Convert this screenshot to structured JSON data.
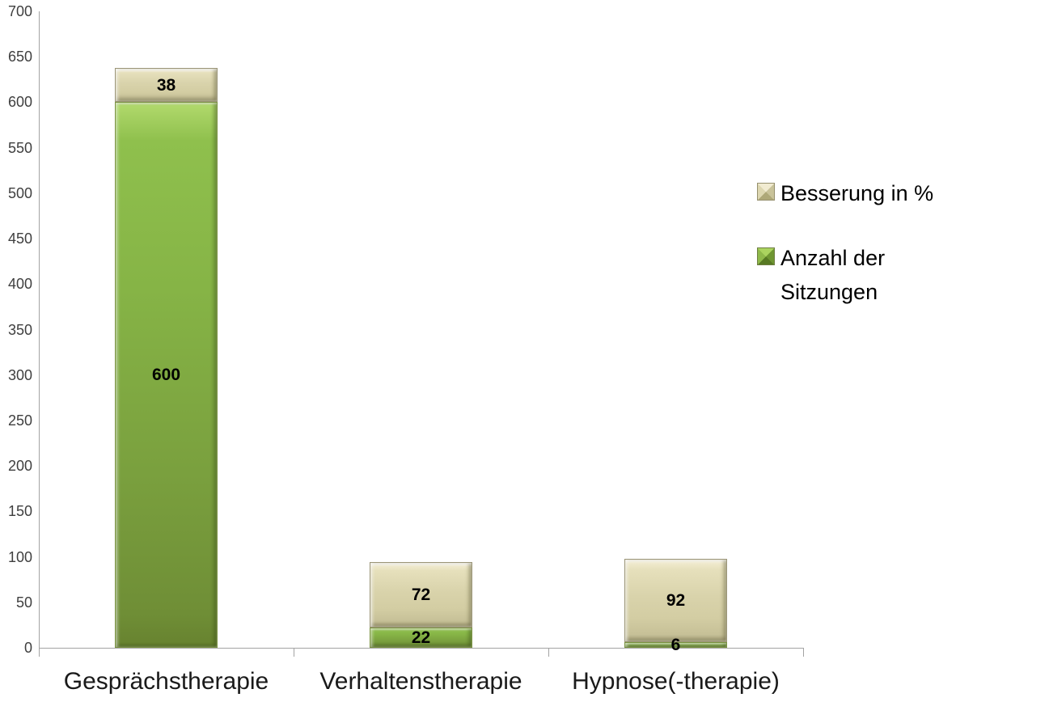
{
  "chart_data": {
    "type": "bar",
    "stacked": true,
    "title": "",
    "categories": [
      "Gesprächstherapie",
      "Verhaltenstherapie",
      "Hypnose(-therapie)"
    ],
    "series": [
      {
        "name": "Anzahl der Sitzungen",
        "values": [
          600,
          22,
          6
        ],
        "color": "#82ad43"
      },
      {
        "name": "Besserung in %",
        "values": [
          38,
          72,
          92
        ],
        "color": "#d7d1a9"
      }
    ],
    "data_labels": {
      "Gesprächstherapie": {
        "Anzahl der Sitzungen": "600",
        "Besserung in %": "38"
      },
      "Verhaltenstherapie": {
        "Anzahl der Sitzungen": "22",
        "Besserung in %": "72"
      },
      "Hypnose(-therapie)": {
        "Anzahl der Sitzungen": "6",
        "Besserung in %": "92"
      }
    },
    "xlabel": "",
    "ylabel": "",
    "ylim": [
      0,
      700
    ],
    "ytick_step": 50,
    "yticks": [
      0,
      50,
      100,
      150,
      200,
      250,
      300,
      350,
      400,
      450,
      500,
      550,
      600,
      650,
      700
    ],
    "grid": false,
    "legend_position": "right",
    "legend": [
      {
        "label": "Besserung in %",
        "color": "#d7d1a9",
        "swatch": "beige"
      },
      {
        "label": "Anzahl der Sitzungen",
        "color": "#82ad43",
        "swatch": "green"
      }
    ],
    "colors": {
      "axis": "#a3a3a3",
      "ytick_text": "#3f3f3f",
      "category_text": "#1a1a1a",
      "data_label_text": "#000000",
      "green_top": "#8fc04d",
      "green_bottom": "#6d8a34",
      "beige_mid": "#d9d3ab"
    }
  }
}
